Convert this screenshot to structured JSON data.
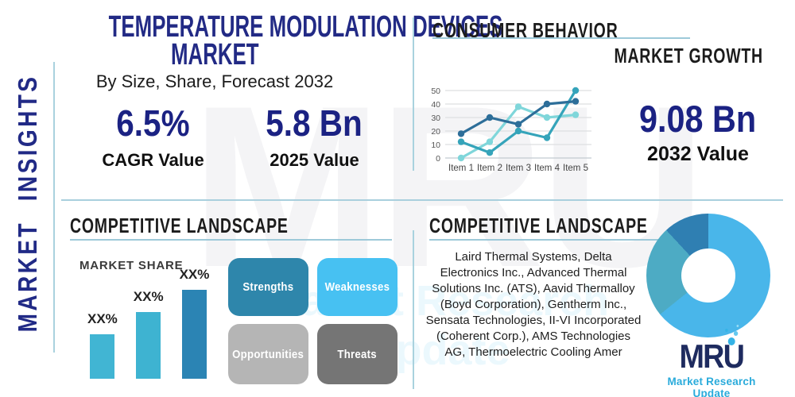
{
  "sidebar": {
    "vertical_label": "MARKET INSIGHTS"
  },
  "header": {
    "title_line1": "TEMPERATURE MODULATION DEVICES",
    "title_line2": "MARKET",
    "subtitle": "By Size, Share, Forecast 2032"
  },
  "stats": {
    "cagr": {
      "value": "6.5%",
      "label": "CAGR Value"
    },
    "value_2025": {
      "value": "5.8 Bn",
      "label": "2025 Value"
    },
    "value_2032": {
      "value": "9.08 Bn",
      "label": "2032 Value"
    }
  },
  "sections": {
    "consumer_behavior": "CONSUMER BEHAVIOR",
    "market_growth": "MARKET GROWTH",
    "competitive_landscape_left": "COMPETITIVE LANDSCAPE",
    "competitive_landscape_right": "COMPETITIVE LANDSCAPE",
    "market_share": "MARKET SHARE"
  },
  "swot": {
    "items": [
      {
        "label": "Strengths",
        "color": "#2e86ab"
      },
      {
        "label": "Weaknesses",
        "color": "#47c1f2"
      },
      {
        "label": "Opportunities",
        "color": "#b5b5b5"
      },
      {
        "label": "Threats",
        "color": "#757575"
      }
    ]
  },
  "companies": {
    "text": "Laird Thermal Systems, Delta Electronics Inc., Advanced Thermal Solutions Inc. (ATS), Aavid Thermalloy (Boyd Corporation), Gentherm Inc., Sensata Technologies, II-VI Incorporated (Coherent Corp.), AMS Technologies AG, Thermoelectric Cooling Amer"
  },
  "logo": {
    "text": "MRU",
    "tagline": "Market Research Update"
  },
  "watermark": {
    "text": "MRU",
    "tagline": "Market Research Update"
  },
  "colors": {
    "navy": "#212a86",
    "heading": "#1c1c1c",
    "divider": "#a9cfdd",
    "logo_navy": "#1e2b5f",
    "logo_teal": "#2aabdb"
  },
  "chart_data": [
    {
      "id": "growth-line",
      "type": "line",
      "title": "",
      "xlabel": "",
      "ylabel": "",
      "categories": [
        "Item 1",
        "Item 2",
        "Item 3",
        "Item 4",
        "Item 5"
      ],
      "series": [
        {
          "name": "series-light",
          "color": "#7fd6da",
          "values": [
            0,
            12,
            38,
            30,
            32
          ]
        },
        {
          "name": "series-teal",
          "color": "#35a4ba",
          "values": [
            12,
            4,
            20,
            15,
            50
          ]
        },
        {
          "name": "series-dark",
          "color": "#2d6e99",
          "values": [
            18,
            30,
            25,
            40,
            42
          ]
        }
      ],
      "ylim": [
        0,
        50
      ],
      "yticks": [
        0,
        10,
        20,
        30,
        40,
        50
      ],
      "grid": true,
      "legend": "none"
    },
    {
      "id": "market-share-bars",
      "type": "bar",
      "title": "MARKET SHARE",
      "categories": [
        "",
        "",
        ""
      ],
      "value_labels": [
        "XX%",
        "XX%",
        "XX%"
      ],
      "values": [
        50,
        75,
        100
      ],
      "colors": [
        "#41b5d3",
        "#3eb3d1",
        "#2b84b4"
      ]
    },
    {
      "id": "company-share-donut",
      "type": "pie",
      "slices": [
        {
          "name": "segment-1",
          "color": "#49b6ea",
          "pct": 64.2
        },
        {
          "name": "segment-2",
          "color": "#4dabc4",
          "pct": 23.9
        },
        {
          "name": "segment-3",
          "color": "#2f7fb2",
          "pct": 11.9
        }
      ]
    }
  ]
}
